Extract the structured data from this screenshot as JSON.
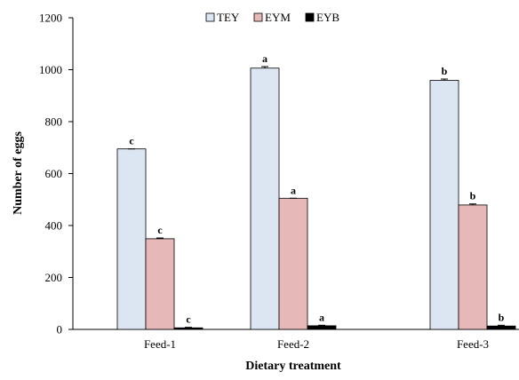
{
  "chart_data": {
    "type": "bar",
    "categories": [
      "Feed-1",
      "Feed-2",
      "Feed-3"
    ],
    "xlabel": "Dietary treatment",
    "ylabel": "Number of eggs",
    "ylim": [
      0,
      1200
    ],
    "yticks": [
      0,
      200,
      400,
      600,
      800,
      1000,
      1200
    ],
    "grid": false,
    "legend_position": "top-center",
    "series": [
      {
        "name": "TEY",
        "color": "#dce6f2",
        "values": [
          695,
          1006,
          959
        ],
        "errors": [
          0,
          6,
          5
        ],
        "sig": [
          "c",
          "a",
          "b"
        ]
      },
      {
        "name": "EYM",
        "color": "#e6b9b8",
        "values": [
          349,
          505,
          479
        ],
        "errors": [
          3,
          0,
          4
        ],
        "sig": [
          "c",
          "a",
          "b"
        ]
      },
      {
        "name": "EYB",
        "color": "#000000",
        "values": [
          6,
          14,
          13
        ],
        "errors": [
          2,
          2,
          3
        ],
        "sig": [
          "c",
          "a",
          "b"
        ]
      }
    ]
  }
}
